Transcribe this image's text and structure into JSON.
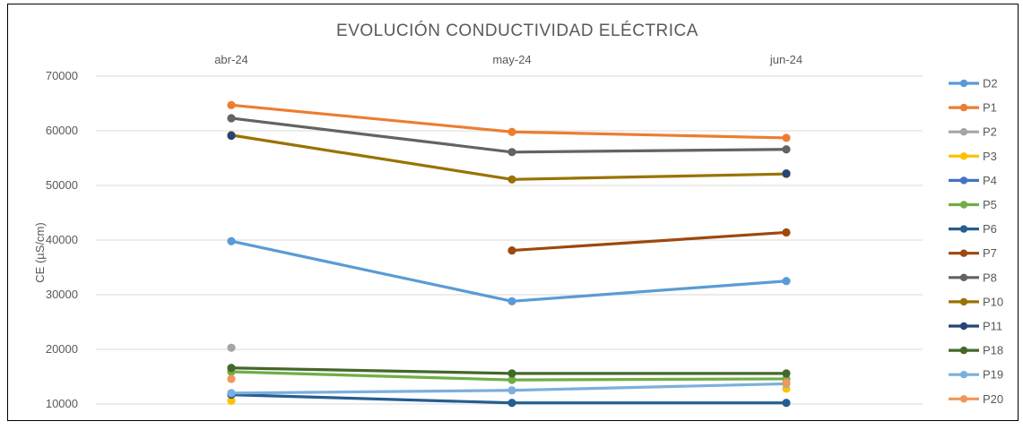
{
  "chart_data": {
    "type": "line",
    "title": "EVOLUCIÓN CONDUCTIVIDAD ELÉCTRICA",
    "xlabel": "",
    "ylabel": "CE (µS/cm)",
    "categories": [
      "abr-24",
      "may-24",
      "jun-24"
    ],
    "x_axis_position": "top",
    "ylim": [
      10000,
      70000
    ],
    "yticks": [
      "10000",
      "20000",
      "30000",
      "40000",
      "50000",
      "60000",
      "70000"
    ],
    "grid": true,
    "legend_position": "right",
    "series": [
      {
        "name": "D2",
        "color": "#5b9bd5",
        "values": [
          39800,
          28800,
          32500
        ]
      },
      {
        "name": "P1",
        "color": "#ed7d31",
        "values": [
          64700,
          59800,
          58700
        ]
      },
      {
        "name": "P2",
        "color": "#a5a5a5",
        "values": [
          20300,
          null,
          null
        ]
      },
      {
        "name": "P3",
        "color": "#ffc000",
        "values": [
          10600,
          null,
          12800
        ]
      },
      {
        "name": "P4",
        "color": "#4472c4",
        "values": [
          null,
          null,
          null
        ]
      },
      {
        "name": "P5",
        "color": "#70ad47",
        "values": [
          15900,
          14400,
          14600
        ]
      },
      {
        "name": "P6",
        "color": "#255e91",
        "values": [
          11700,
          10200,
          10200
        ]
      },
      {
        "name": "P7",
        "color": "#9e480e",
        "values": [
          null,
          38100,
          41400
        ]
      },
      {
        "name": "P8",
        "color": "#636363",
        "values": [
          62300,
          56100,
          56600
        ]
      },
      {
        "name": "P10",
        "color": "#997300",
        "values": [
          59200,
          51100,
          52100
        ]
      },
      {
        "name": "P11",
        "color": "#264478",
        "values": [
          59100,
          null,
          52200
        ]
      },
      {
        "name": "P18",
        "color": "#43682b",
        "values": [
          16600,
          15600,
          15600
        ]
      },
      {
        "name": "P19",
        "color": "#7cafdd",
        "values": [
          12000,
          12500,
          13700
        ]
      },
      {
        "name": "P20",
        "color": "#f1975a",
        "values": [
          14600,
          null,
          13900
        ]
      }
    ]
  }
}
